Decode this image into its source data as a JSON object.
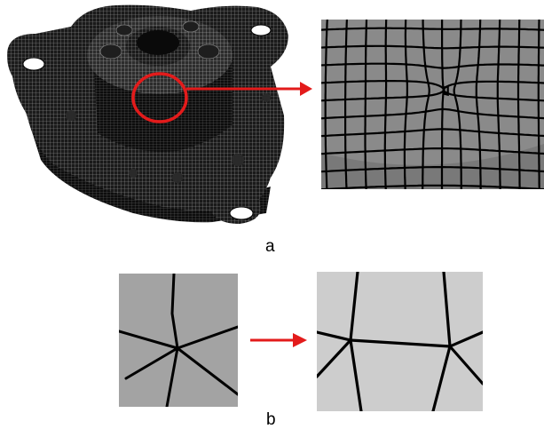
{
  "figure": {
    "panel_a": {
      "label": "a",
      "highlight_color": "#e31b1b",
      "mesh_color": "#000000",
      "zoom_face_color": "#8a8a8a"
    },
    "panel_b": {
      "label": "b",
      "before_face_color": "#a3a3a3",
      "after_face_color": "#cdcdcd",
      "arrow_color": "#e31b1b"
    }
  }
}
